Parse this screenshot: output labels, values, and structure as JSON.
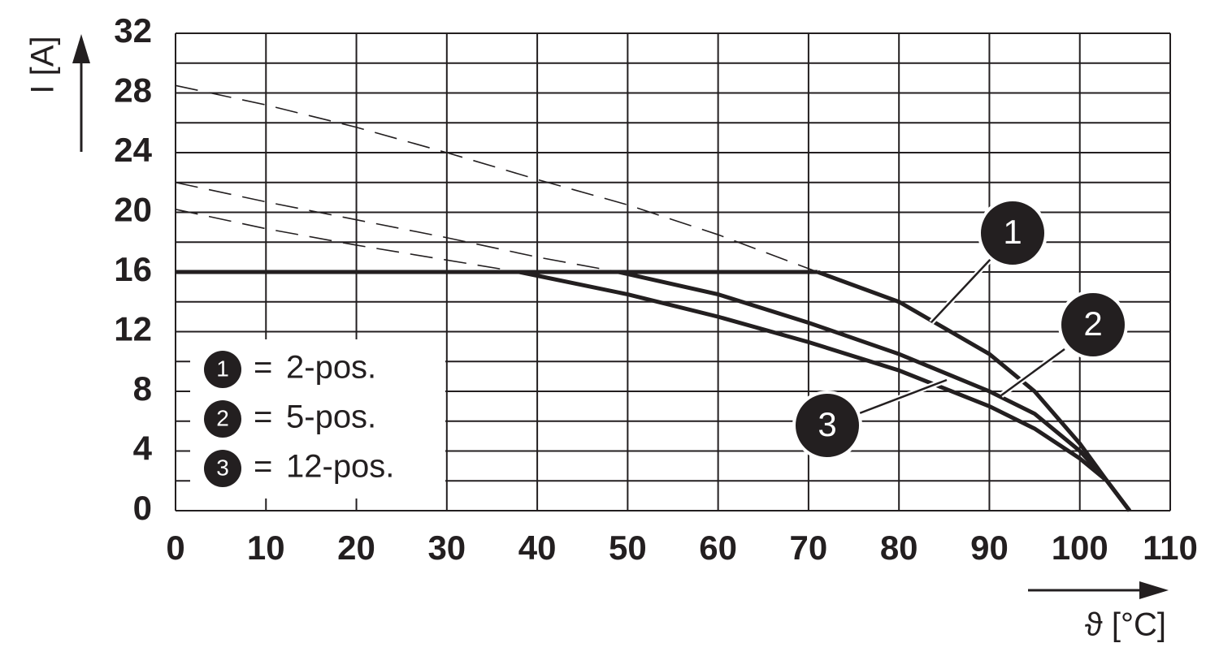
{
  "chart_data": {
    "type": "line",
    "xlabel": "ϑ [°C]",
    "ylabel": "I [A]",
    "xlim": [
      0,
      110
    ],
    "ylim": [
      0,
      32
    ],
    "xticks": [
      0,
      10,
      20,
      30,
      40,
      50,
      60,
      70,
      80,
      90,
      100,
      110
    ],
    "yticks": [
      0,
      4,
      8,
      12,
      16,
      20,
      24,
      28,
      32
    ],
    "y_minor_ticks": [
      2,
      6,
      10,
      14,
      18,
      22,
      26,
      30
    ],
    "grid": true,
    "legend": "lower left",
    "color": "#231f20",
    "limit": {
      "x": [
        0,
        71
      ],
      "values": [
        16,
        16
      ]
    },
    "series": [
      {
        "name": "2-pos.",
        "label": "1",
        "dashed": {
          "x": [
            0,
            10,
            20,
            30,
            40,
            50,
            60,
            71
          ],
          "values": [
            28.5,
            27.2,
            25.7,
            24,
            22.2,
            20.5,
            18.5,
            16
          ]
        },
        "solid": {
          "x": [
            71,
            80,
            90,
            95,
            100,
            103,
            105.5
          ],
          "values": [
            16,
            14,
            10.5,
            8,
            4.5,
            2,
            0
          ]
        }
      },
      {
        "name": "5-pos.",
        "label": "2",
        "dashed": {
          "x": [
            0,
            10,
            20,
            30,
            40,
            49
          ],
          "values": [
            22,
            20.7,
            19.5,
            18.3,
            17,
            16
          ]
        },
        "solid": {
          "x": [
            49,
            60,
            70,
            80,
            90,
            95,
            100,
            103,
            105.5
          ],
          "values": [
            16,
            14.5,
            12.6,
            10.5,
            8,
            6.5,
            4,
            2,
            0
          ]
        }
      },
      {
        "name": "12-pos.",
        "label": "3",
        "dashed": {
          "x": [
            0,
            10,
            20,
            30,
            38
          ],
          "values": [
            20.2,
            18.9,
            17.8,
            16.8,
            16
          ]
        },
        "solid": {
          "x": [
            38,
            50,
            60,
            70,
            80,
            90,
            95,
            100,
            103,
            105.5
          ],
          "values": [
            16,
            14.5,
            13,
            11.3,
            9.4,
            7,
            5.5,
            3.5,
            2,
            0
          ]
        }
      }
    ]
  }
}
